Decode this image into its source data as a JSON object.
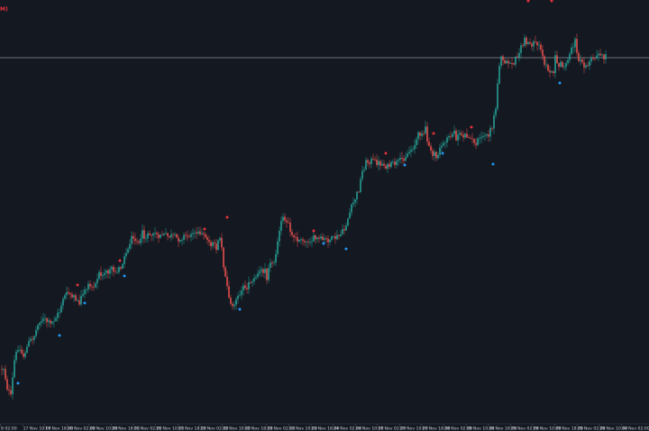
{
  "corner_label": "M)",
  "colors": {
    "background": "#141821",
    "bull": "#26a69a",
    "bear": "#ef5350",
    "signal_up": "#2196f3",
    "signal_down": "#e5323c",
    "hline": "#8a8f99",
    "axis": "#c9ccd3"
  },
  "chart_data": {
    "type": "candlestick",
    "x_tick_labels": [
      "8 02:00",
      "17 Nov 10:00",
      "17 Nov 18:00",
      "20 Nov 02:00",
      "20 Nov 10:00",
      "20 Nov 18:00",
      "21 Nov 02:00",
      "21 Nov 10:00",
      "21 Nov 18:00",
      "22 Nov 02:00",
      "22 Nov 10:00",
      "22 Nov 18:00",
      "23 Nov 02:00",
      "23 Nov 10:00",
      "23 Nov 18:00",
      "24 Nov 02:00",
      "24 Nov 10:00",
      "27 Nov 02:00",
      "27 Nov 10:00",
      "27 Nov 18:00",
      "28 Nov 02:00",
      "28 Nov 10:00",
      "28 Nov 18:00",
      "29 Nov 02:00",
      "29 Nov 10:00",
      "29 Nov 18:00",
      "29 Nov 02:00",
      "29 Nov 10:00",
      "30 Nov 02:00"
    ],
    "ylim": [
      0,
      478
    ],
    "y_inverted": true,
    "horizontal_line_y": 64,
    "anchors": [
      [
        0,
        410
      ],
      [
        6,
        408
      ],
      [
        10,
        430
      ],
      [
        14,
        440
      ],
      [
        18,
        400
      ],
      [
        22,
        385
      ],
      [
        28,
        395
      ],
      [
        34,
        380
      ],
      [
        40,
        372
      ],
      [
        46,
        355
      ],
      [
        52,
        355
      ],
      [
        58,
        360
      ],
      [
        64,
        352
      ],
      [
        68,
        345
      ],
      [
        72,
        330
      ],
      [
        78,
        325
      ],
      [
        84,
        330
      ],
      [
        90,
        335
      ],
      [
        95,
        322
      ],
      [
        100,
        318
      ],
      [
        106,
        320
      ],
      [
        112,
        305
      ],
      [
        118,
        300
      ],
      [
        124,
        297
      ],
      [
        130,
        300
      ],
      [
        136,
        298
      ],
      [
        142,
        280
      ],
      [
        148,
        265
      ],
      [
        152,
        268
      ],
      [
        158,
        268
      ],
      [
        164,
        262
      ],
      [
        170,
        260
      ],
      [
        176,
        258
      ],
      [
        182,
        260
      ],
      [
        188,
        262
      ],
      [
        194,
        262
      ],
      [
        200,
        265
      ],
      [
        206,
        262
      ],
      [
        212,
        260
      ],
      [
        218,
        258
      ],
      [
        224,
        260
      ],
      [
        230,
        265
      ],
      [
        236,
        270
      ],
      [
        242,
        275
      ],
      [
        247,
        262
      ],
      [
        250,
        300
      ],
      [
        254,
        320
      ],
      [
        258,
        335
      ],
      [
        262,
        340
      ],
      [
        266,
        330
      ],
      [
        270,
        320
      ],
      [
        276,
        318
      ],
      [
        282,
        313
      ],
      [
        288,
        305
      ],
      [
        294,
        300
      ],
      [
        300,
        295
      ],
      [
        306,
        288
      ],
      [
        310,
        270
      ],
      [
        314,
        242
      ],
      [
        318,
        245
      ],
      [
        322,
        250
      ],
      [
        326,
        262
      ],
      [
        330,
        265
      ],
      [
        336,
        268
      ],
      [
        342,
        268
      ],
      [
        348,
        265
      ],
      [
        354,
        265
      ],
      [
        360,
        266
      ],
      [
        366,
        266
      ],
      [
        372,
        265
      ],
      [
        378,
        262
      ],
      [
        384,
        255
      ],
      [
        388,
        242
      ],
      [
        392,
        230
      ],
      [
        396,
        220
      ],
      [
        400,
        210
      ],
      [
        404,
        190
      ],
      [
        408,
        180
      ],
      [
        414,
        178
      ],
      [
        420,
        180
      ],
      [
        426,
        182
      ],
      [
        432,
        185
      ],
      [
        438,
        182
      ],
      [
        444,
        180
      ],
      [
        450,
        175
      ],
      [
        456,
        168
      ],
      [
        462,
        160
      ],
      [
        466,
        150
      ],
      [
        470,
        145
      ],
      [
        474,
        150
      ],
      [
        478,
        162
      ],
      [
        482,
        170
      ],
      [
        486,
        173
      ],
      [
        490,
        165
      ],
      [
        494,
        158
      ],
      [
        498,
        152
      ],
      [
        504,
        148
      ],
      [
        510,
        147
      ],
      [
        516,
        150
      ],
      [
        522,
        150
      ],
      [
        528,
        160
      ],
      [
        534,
        155
      ],
      [
        540,
        150
      ],
      [
        544,
        150
      ],
      [
        548,
        140
      ],
      [
        552,
        120
      ],
      [
        555,
        80
      ],
      [
        558,
        60
      ],
      [
        562,
        68
      ],
      [
        566,
        70
      ],
      [
        572,
        70
      ],
      [
        578,
        58
      ],
      [
        584,
        45
      ],
      [
        590,
        48
      ],
      [
        596,
        50
      ],
      [
        602,
        52
      ],
      [
        606,
        70
      ],
      [
        610,
        80
      ],
      [
        614,
        80
      ],
      [
        620,
        72
      ],
      [
        626,
        72
      ],
      [
        632,
        70
      ],
      [
        636,
        55
      ],
      [
        640,
        45
      ],
      [
        644,
        65
      ],
      [
        648,
        72
      ],
      [
        654,
        70
      ],
      [
        660,
        65
      ],
      [
        666,
        62
      ],
      [
        672,
        63
      ]
    ],
    "signals_up": [
      [
        20,
        425
      ],
      [
        66,
        372
      ],
      [
        94,
        336
      ],
      [
        138,
        306
      ],
      [
        266,
        343
      ],
      [
        359,
        270
      ],
      [
        384,
        276
      ],
      [
        449,
        183
      ],
      [
        491,
        170
      ],
      [
        547,
        182
      ],
      [
        621,
        92
      ]
    ],
    "signals_down": [
      [
        86,
        316
      ],
      [
        133,
        289
      ],
      [
        227,
        254
      ],
      [
        252,
        241
      ],
      [
        348,
        256
      ],
      [
        428,
        170
      ],
      [
        481,
        148
      ],
      [
        523,
        141
      ],
      [
        586,
        0
      ],
      [
        612,
        0
      ]
    ]
  }
}
